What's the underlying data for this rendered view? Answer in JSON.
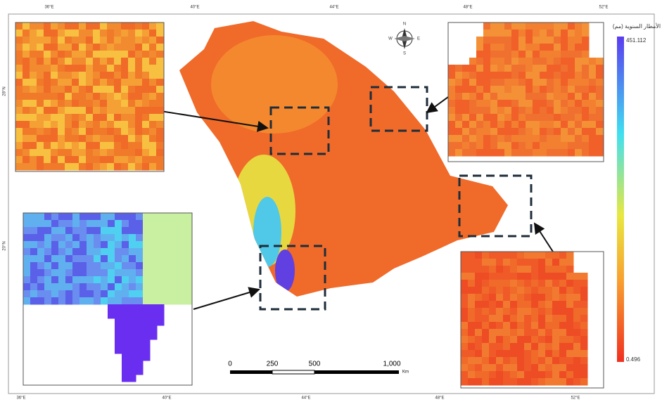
{
  "map": {
    "frame_labels": {
      "top": [
        "36°E",
        "40°E",
        "44°E",
        "48°E",
        "52°E"
      ],
      "bottom": [
        "36°E",
        "40°E",
        "44°E",
        "48°E",
        "52°E"
      ],
      "left": [
        "28°N",
        "20°N"
      ]
    },
    "legend": {
      "title": "الأمطار السنوية (مم)",
      "max": "451.112",
      "min": "0.496"
    },
    "scale_bar": {
      "labels": [
        "0",
        "250",
        "500",
        "1,000"
      ],
      "unit": "Km"
    },
    "compass": {
      "n": "N",
      "s": "S",
      "e": "E",
      "w": "W"
    }
  }
}
